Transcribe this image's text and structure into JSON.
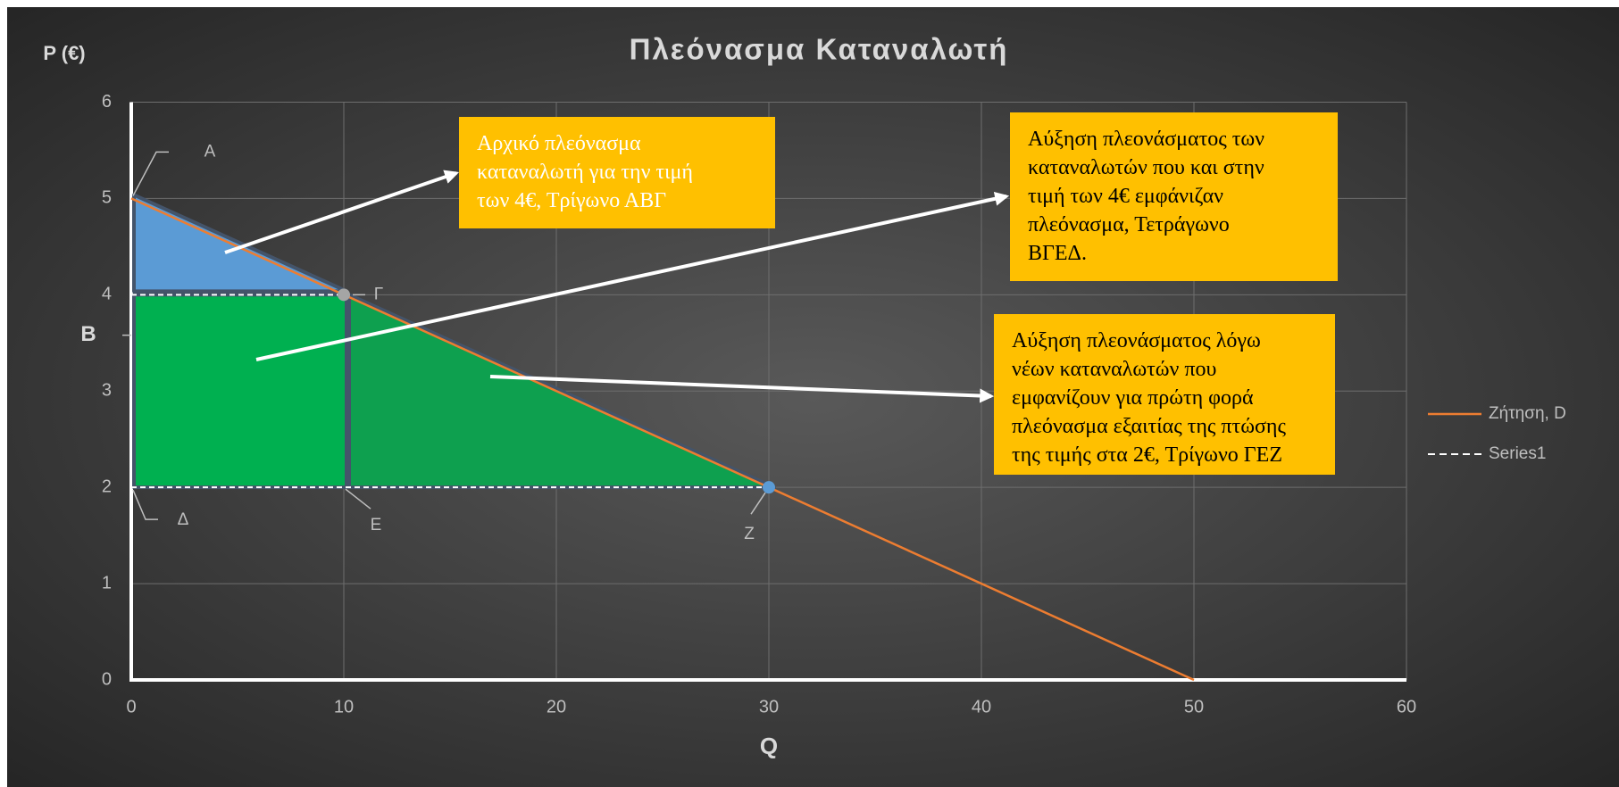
{
  "chart_data": {
    "type": "line",
    "title": "Πλεόνασμα Καταναλωτή",
    "x_label": "Q",
    "y_label": "P (€)",
    "xlim": [
      0,
      60
    ],
    "xticks": [
      0,
      10,
      20,
      30,
      40,
      50,
      60
    ],
    "ylim": [
      0,
      6
    ],
    "yticks": [
      0,
      1,
      2,
      3,
      4,
      5,
      6
    ],
    "grid": true,
    "legend": "right",
    "series": [
      {
        "name": "Ζήτηση, D",
        "color": "#ed7d31",
        "dash": false,
        "x": [
          0,
          50
        ],
        "values": [
          5,
          0
        ]
      },
      {
        "name": "Series1",
        "color": "#ffffff",
        "dash": true,
        "x": [
          0,
          10,
          0,
          0,
          30
        ],
        "values": [
          4,
          4,
          null,
          2,
          2
        ]
      }
    ],
    "regions": [
      {
        "color": "#5b9bd5",
        "x": [
          0,
          0,
          10
        ],
        "y": [
          5,
          4,
          4
        ]
      },
      {
        "color": "#00b050",
        "x": [
          0,
          10,
          10,
          0
        ],
        "y": [
          4,
          4,
          2,
          2
        ]
      },
      {
        "color": "#0ea04f",
        "x": [
          10,
          10,
          30
        ],
        "y": [
          4,
          2,
          2
        ]
      }
    ],
    "markers": [
      {
        "x": 10,
        "y": 4,
        "color": "#a5a5a5"
      },
      {
        "x": 30,
        "y": 2,
        "color": "#5b9bd5"
      }
    ],
    "point_labels": [
      {
        "label": "Α",
        "x": 0,
        "y": 5
      },
      {
        "label": "Β",
        "x": 0,
        "y": 3.58
      },
      {
        "label": "Γ",
        "x": 10,
        "y": 4
      },
      {
        "label": "Δ",
        "x": 0,
        "y": 2
      },
      {
        "label": "Ε",
        "x": 10,
        "y": 2
      },
      {
        "label": "Ζ",
        "x": 30,
        "y": 2
      }
    ],
    "annotations": [
      {
        "color": "#ffc000",
        "text_color": "#ffffff",
        "lines": [
          "Αρχικό πλεόνασμα",
          "καταναλωτή για την τιμή",
          "των 4€, Τρίγωνο ΑΒΓ"
        ]
      },
      {
        "color": "#ffc000",
        "text_color": "#000000",
        "lines": [
          "Αύξηση πλεονάσματος των",
          "καταναλωτών που και στην",
          "τιμή των 4€ εμφάνιζαν",
          "πλεόνασμα, Τετράγωνο",
          "ΒΓΕΔ."
        ]
      },
      {
        "color": "#ffc000",
        "text_color": "#000000",
        "lines": [
          "Αύξηση πλεονάσματος λόγω",
          "νέων καταναλωτών που",
          "εμφανίζουν για πρώτη φορά",
          "πλεόνασμα εξαιτίας της πτώσης",
          "της τιμής στα 2€, Τρίγωνο ΓΕΖ"
        ]
      }
    ]
  }
}
